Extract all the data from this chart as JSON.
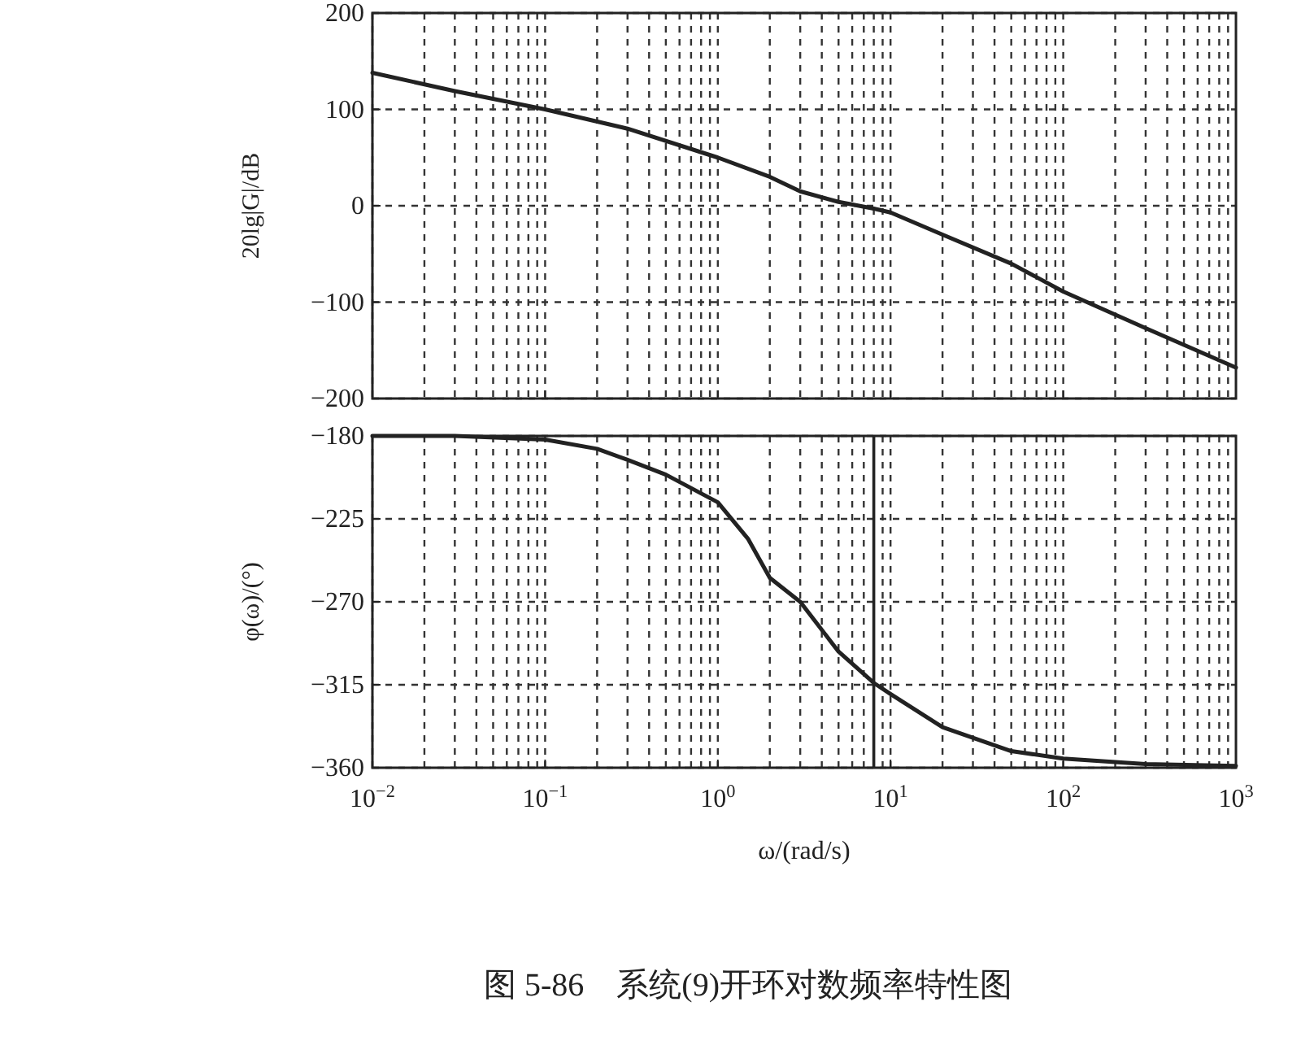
{
  "chart_data": [
    {
      "type": "line",
      "ylabel": "20lg|G|/dB",
      "log": "x",
      "grid": true,
      "tick_labels": "y",
      "xlim": [
        0.01,
        1000
      ],
      "ylim": [
        -200,
        200
      ],
      "yticks": [
        {
          "value": -200,
          "label": "−200"
        },
        {
          "value": -100,
          "label": "−100"
        },
        0,
        100,
        200
      ],
      "series": [
        {
          "color": "#222222",
          "x": [
            0.01,
            0.03,
            0.1,
            0.3,
            1,
            2,
            3,
            5,
            8,
            10,
            20,
            50,
            100,
            300,
            1000
          ],
          "values": [
            138,
            119,
            100,
            80,
            50,
            30,
            15,
            4,
            -3,
            -7,
            -30,
            -60,
            -89,
            -127,
            -168
          ]
        }
      ]
    },
    {
      "type": "line",
      "xlabel": "ω/(rad/s)",
      "ylabel": "φ(ω)/(°)",
      "log": "x",
      "grid": true,
      "xlim": [
        0.01,
        1000
      ],
      "ylim": [
        -360,
        -180
      ],
      "xticks": [
        {
          "value": 0.01,
          "label": "10$^{−2}$"
        },
        {
          "value": 0.1,
          "label": "10$^{−1}$"
        },
        {
          "value": 1,
          "label": "10$^{0}$"
        },
        {
          "value": 10,
          "label": "10$^{1}$"
        },
        {
          "value": 100,
          "label": "10$^{2}$"
        },
        {
          "value": 1000,
          "label": "10$^{3}$"
        }
      ],
      "yticks": [
        {
          "value": -180,
          "label": "−180"
        },
        {
          "value": -225,
          "label": "−225"
        },
        {
          "value": -270,
          "label": "−270"
        },
        {
          "value": -315,
          "label": "−315"
        },
        {
          "value": -360,
          "label": "−360"
        }
      ],
      "ref_lines": [
        {
          "axis": "x",
          "value": 8,
          "color": "#222222"
        }
      ],
      "annotations": [
        "图 5-86　系统(9)开环对数频率特性图"
      ],
      "series": [
        {
          "color": "#222222",
          "x": [
            0.01,
            0.03,
            0.1,
            0.2,
            0.3,
            0.5,
            1,
            1.5,
            2,
            3,
            5,
            8,
            10,
            20,
            50,
            100,
            300,
            1000
          ],
          "values": [
            -180,
            -180,
            -182,
            -187,
            -193,
            -201,
            -216,
            -236,
            -257,
            -270,
            -297,
            -314,
            -320,
            -338,
            -351,
            -355,
            -358,
            -359
          ]
        }
      ]
    }
  ]
}
